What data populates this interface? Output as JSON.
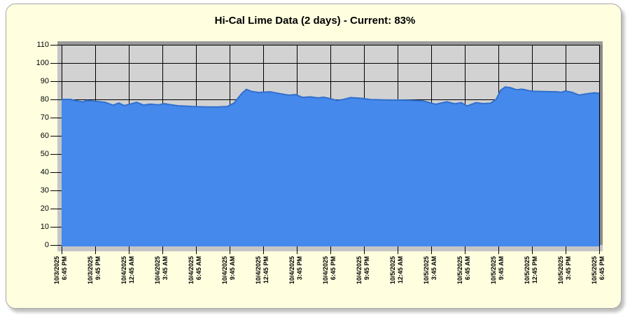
{
  "panel": {
    "background": "#FFFFE0"
  },
  "title": "Hi-Cal Lime Data (2 days) - Current: 83%",
  "chart_data": {
    "type": "area",
    "title": "Hi-Cal Lime Data (2 days) - Current: 83%",
    "current_value_pct": 83,
    "ylim": [
      0,
      110
    ],
    "xlim_hours": [
      0,
      48
    ],
    "grid": true,
    "legend": "none",
    "plot_background": "#D2D2D2",
    "grid_color": "#000000",
    "wall_light": "#C6C6C6",
    "wall_top": "#9A9A9A",
    "wall_right": "#8C8C8C",
    "y_ticks": [
      "0",
      "10",
      "20",
      "30",
      "40",
      "50",
      "60",
      "70",
      "80",
      "90",
      "100",
      "110"
    ],
    "x_ticks": [
      {
        "hours": 0,
        "date": "10/3/2025",
        "time": "6:45 PM"
      },
      {
        "hours": 3,
        "date": "10/3/2025",
        "time": "9:45 PM"
      },
      {
        "hours": 6,
        "date": "10/4/2025",
        "time": "12:45 AM"
      },
      {
        "hours": 9,
        "date": "10/4/2025",
        "time": "3:45 AM"
      },
      {
        "hours": 12,
        "date": "10/4/2025",
        "time": "6:45 AM"
      },
      {
        "hours": 15,
        "date": "10/4/2025",
        "time": "9:45 AM"
      },
      {
        "hours": 18,
        "date": "10/4/2025",
        "time": "12:45 PM"
      },
      {
        "hours": 21,
        "date": "10/4/2025",
        "time": "3:45 PM"
      },
      {
        "hours": 24,
        "date": "10/4/2025",
        "time": "6:45 PM"
      },
      {
        "hours": 27,
        "date": "10/4/2025",
        "time": "9:45 PM"
      },
      {
        "hours": 30,
        "date": "10/5/2025",
        "time": "12:45 AM"
      },
      {
        "hours": 33,
        "date": "10/5/2025",
        "time": "3:45 AM"
      },
      {
        "hours": 36,
        "date": "10/5/2025",
        "time": "6:45 AM"
      },
      {
        "hours": 39,
        "date": "10/5/2025",
        "time": "9:45 AM"
      },
      {
        "hours": 42,
        "date": "10/5/2025",
        "time": "12:45 PM"
      },
      {
        "hours": 45,
        "date": "10/5/2025",
        "time": "3:45 PM"
      },
      {
        "hours": 48,
        "date": "10/5/2025",
        "time": "6:45 PM"
      }
    ],
    "series": [
      {
        "name": "Hi-Cal Lime %",
        "fill": "#4689EC",
        "stroke": "#3070CE",
        "points_hours_value": [
          [
            0,
            80
          ],
          [
            0.8,
            80
          ],
          [
            1.2,
            79.4
          ],
          [
            1.9,
            78.6
          ],
          [
            2.2,
            79.4
          ],
          [
            3,
            79
          ],
          [
            3.9,
            78.4
          ],
          [
            4.6,
            76.8
          ],
          [
            5.1,
            78
          ],
          [
            5.6,
            76.6
          ],
          [
            6.1,
            77.4
          ],
          [
            6.7,
            78.4
          ],
          [
            7.3,
            76.9
          ],
          [
            7.9,
            77.4
          ],
          [
            8.6,
            77
          ],
          [
            9.2,
            77.6
          ],
          [
            9.8,
            77
          ],
          [
            10.4,
            76.5
          ],
          [
            11.1,
            76.3
          ],
          [
            12,
            76
          ],
          [
            12.9,
            75.9
          ],
          [
            13.9,
            75.8
          ],
          [
            14.8,
            76.1
          ],
          [
            15.4,
            78
          ],
          [
            16.1,
            83.4
          ],
          [
            16.5,
            85.5
          ],
          [
            17,
            84.3
          ],
          [
            17.6,
            83.8
          ],
          [
            18.6,
            84.2
          ],
          [
            19.5,
            83.1
          ],
          [
            20.3,
            82.3
          ],
          [
            20.9,
            82.6
          ],
          [
            21.5,
            81.1
          ],
          [
            22.2,
            81.4
          ],
          [
            22.9,
            80.8
          ],
          [
            23.4,
            81.2
          ],
          [
            24,
            80.4
          ],
          [
            24.6,
            79.4
          ],
          [
            25.2,
            80
          ],
          [
            25.8,
            81
          ],
          [
            26.7,
            80.6
          ],
          [
            27.6,
            79.9
          ],
          [
            28.8,
            79.7
          ],
          [
            30,
            79.6
          ],
          [
            31,
            79.5
          ],
          [
            32.3,
            79.1
          ],
          [
            33.4,
            77.3
          ],
          [
            34.4,
            78.7
          ],
          [
            35.1,
            77.6
          ],
          [
            35.7,
            78.2
          ],
          [
            36.2,
            76.4
          ],
          [
            37,
            78.2
          ],
          [
            37.6,
            77.7
          ],
          [
            38.3,
            77.9
          ],
          [
            38.8,
            80
          ],
          [
            39.2,
            85
          ],
          [
            39.6,
            86.8
          ],
          [
            40.1,
            86.4
          ],
          [
            40.6,
            85.3
          ],
          [
            41.1,
            85.6
          ],
          [
            42,
            84.5
          ],
          [
            43,
            84.3
          ],
          [
            44.2,
            84.2
          ],
          [
            44.6,
            83.9
          ],
          [
            45,
            84.6
          ],
          [
            45.6,
            83.9
          ],
          [
            46.2,
            82.4
          ],
          [
            47,
            83.2
          ],
          [
            47.6,
            83.6
          ],
          [
            48,
            83.3
          ]
        ]
      }
    ]
  }
}
